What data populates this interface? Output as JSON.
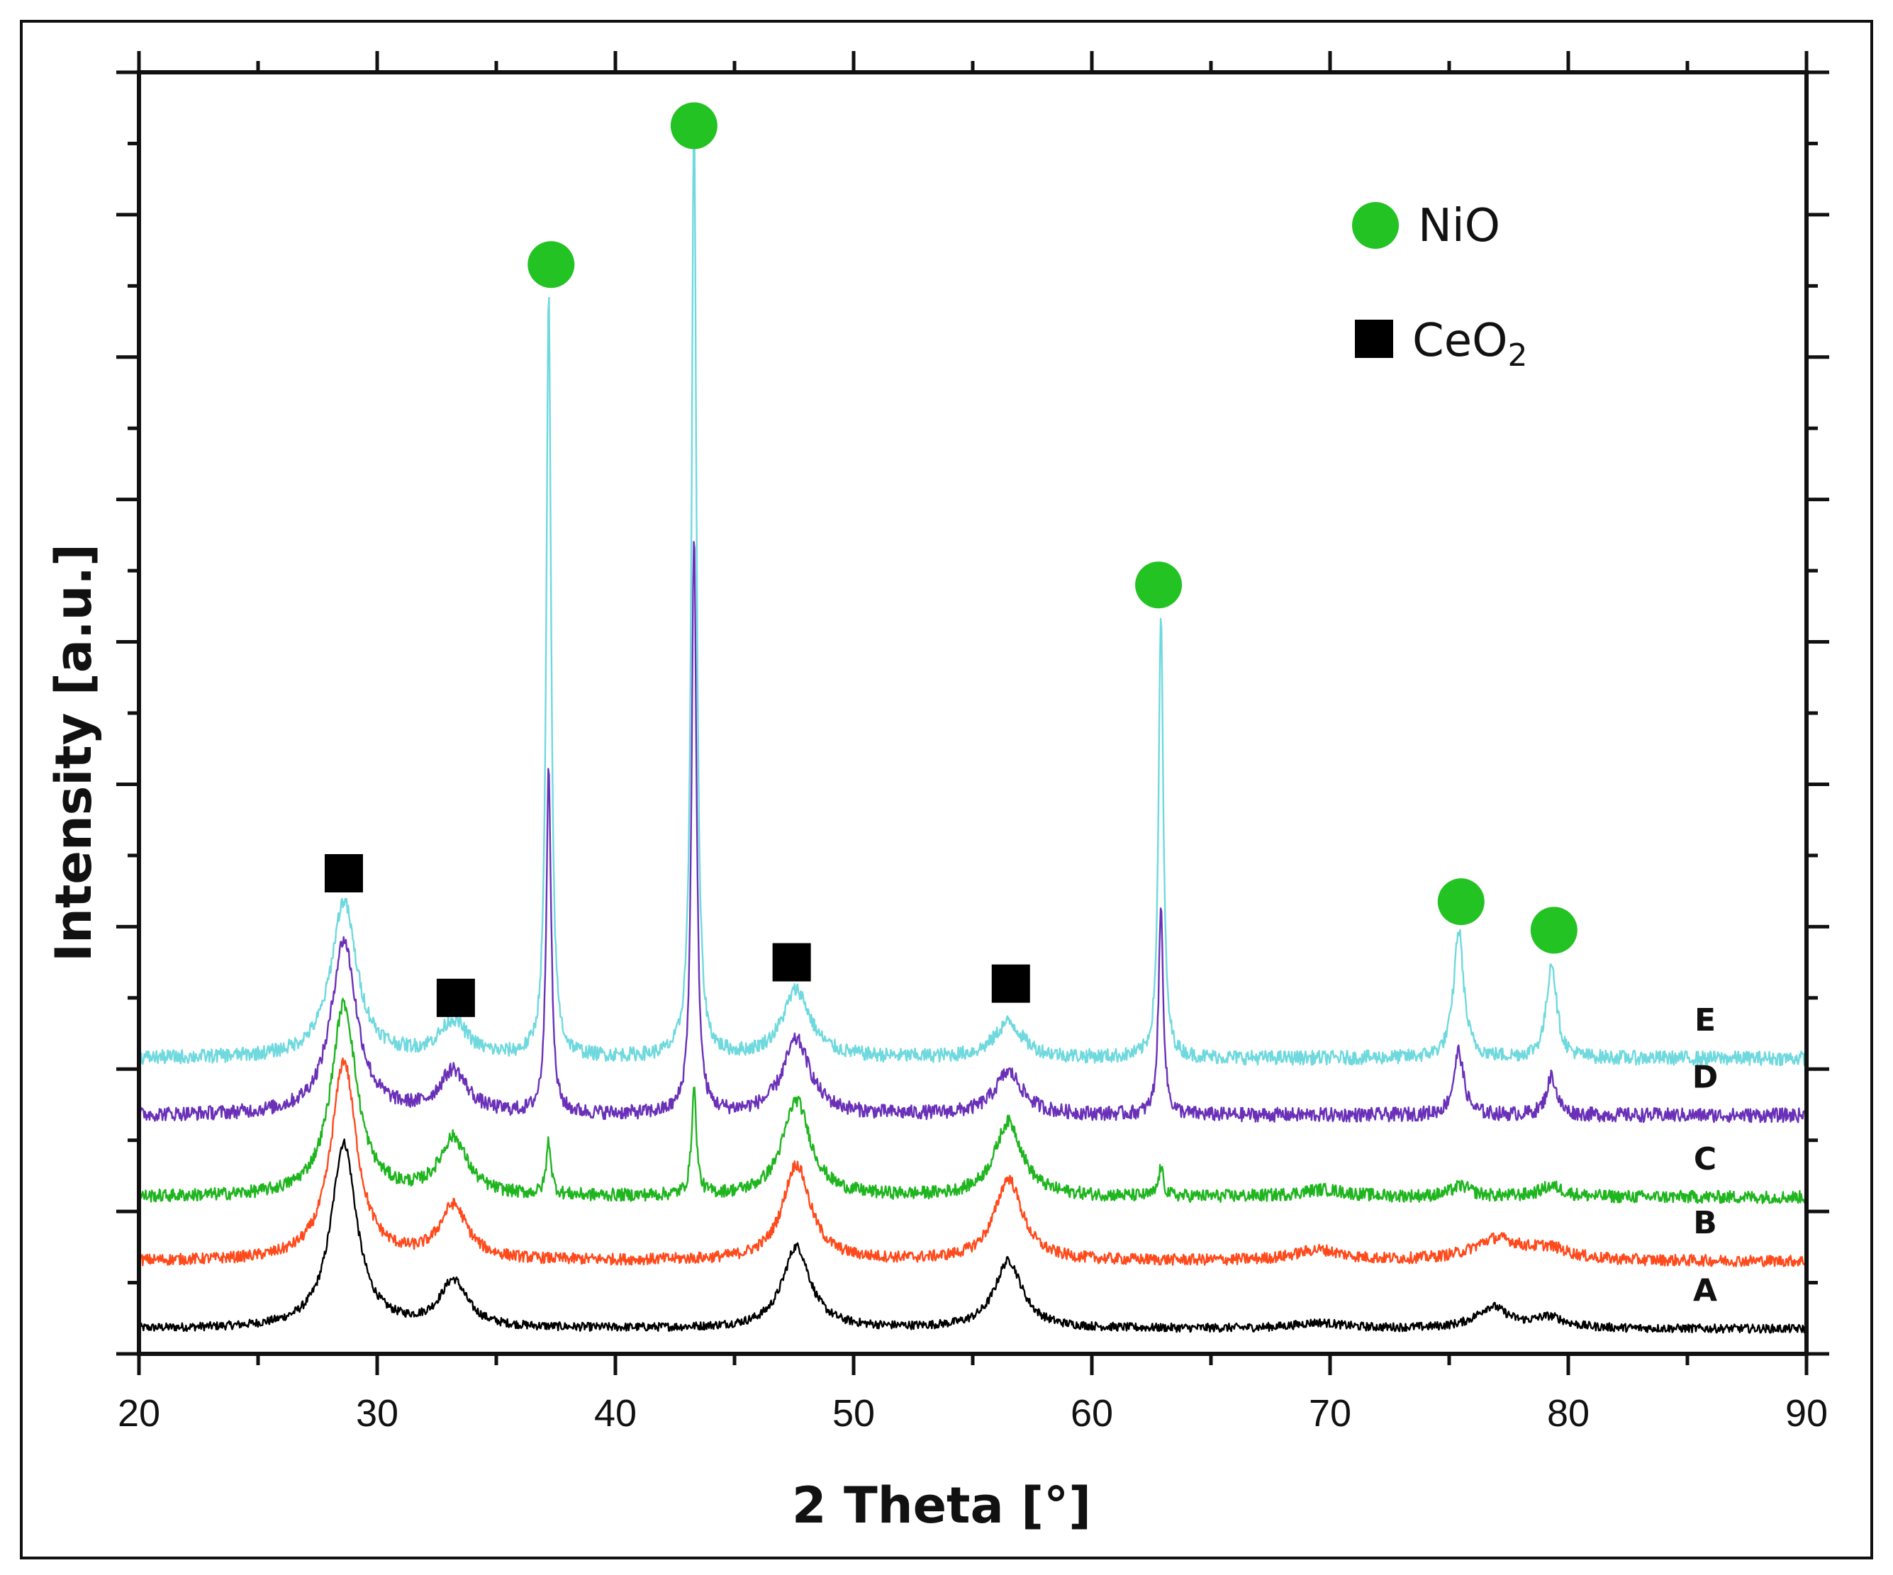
{
  "chart_data": {
    "type": "line",
    "title": "",
    "xlabel": "2 Theta [°]",
    "ylabel": "Intensity [a.u.]",
    "xlim": [
      20,
      90
    ],
    "ylim": [
      0,
      18
    ],
    "x_ticks": [
      20,
      30,
      40,
      50,
      60,
      70,
      80,
      90
    ],
    "x_tick_labels": [
      "20",
      "30",
      "40",
      "50",
      "60",
      "70",
      "80",
      "90"
    ],
    "y_tick_labels_shown": false,
    "grid": false,
    "legend_position": "top-right",
    "legend": [
      {
        "marker": "circle",
        "color": "#22c322",
        "label": "NiO"
      },
      {
        "marker": "square",
        "color": "#000000",
        "label_main": "CeO",
        "label_sub": "2"
      }
    ],
    "series": [
      {
        "name": "A",
        "color": "#000000",
        "baseline": 0.35,
        "noise": 0.06,
        "peaks": [
          [
            28.6,
            2.6,
            0.65
          ],
          [
            33.2,
            0.65,
            0.7
          ],
          [
            47.6,
            1.15,
            0.7
          ],
          [
            56.5,
            0.95,
            0.7
          ],
          [
            69.5,
            0.08,
            1.2
          ],
          [
            76.8,
            0.3,
            0.8
          ],
          [
            79.2,
            0.15,
            0.8
          ]
        ]
      },
      {
        "name": "B",
        "color": "#ff4a1c",
        "baseline": 1.3,
        "noise": 0.08,
        "peaks": [
          [
            28.6,
            2.8,
            0.65
          ],
          [
            33.2,
            0.75,
            0.7
          ],
          [
            47.6,
            1.35,
            0.7
          ],
          [
            56.5,
            1.15,
            0.7
          ],
          [
            69.5,
            0.15,
            1.2
          ],
          [
            77.0,
            0.3,
            1.2
          ],
          [
            79.2,
            0.15,
            1.0
          ]
        ]
      },
      {
        "name": "C",
        "color": "#1fb51f",
        "baseline": 2.2,
        "noise": 0.09,
        "peaks": [
          [
            28.6,
            2.7,
            0.65
          ],
          [
            33.2,
            0.8,
            0.7
          ],
          [
            37.2,
            0.75,
            0.12
          ],
          [
            43.3,
            1.5,
            0.12
          ],
          [
            47.6,
            1.35,
            0.7
          ],
          [
            56.5,
            1.05,
            0.7
          ],
          [
            62.9,
            0.4,
            0.12
          ],
          [
            69.7,
            0.1,
            1.2
          ],
          [
            75.5,
            0.15,
            0.5
          ],
          [
            79.3,
            0.15,
            0.6
          ]
        ]
      },
      {
        "name": "D",
        "color": "#6a31b8",
        "baseline": 3.35,
        "noise": 0.1,
        "peaks": [
          [
            28.6,
            2.45,
            0.65
          ],
          [
            33.2,
            0.6,
            0.7
          ],
          [
            37.2,
            4.9,
            0.12
          ],
          [
            43.3,
            8.15,
            0.12
          ],
          [
            47.6,
            1.05,
            0.7
          ],
          [
            56.5,
            0.6,
            0.7
          ],
          [
            62.9,
            2.9,
            0.12
          ],
          [
            75.4,
            0.9,
            0.25
          ],
          [
            79.3,
            0.55,
            0.25
          ]
        ]
      },
      {
        "name": "E",
        "color": "#6fd9de",
        "baseline": 4.15,
        "noise": 0.1,
        "peaks": [
          [
            28.6,
            2.2,
            0.65
          ],
          [
            33.2,
            0.5,
            0.7
          ],
          [
            37.2,
            10.7,
            0.12
          ],
          [
            43.3,
            13.35,
            0.12
          ],
          [
            47.6,
            0.95,
            0.7
          ],
          [
            56.5,
            0.5,
            0.7
          ],
          [
            62.9,
            6.2,
            0.12
          ],
          [
            75.4,
            1.8,
            0.25
          ],
          [
            79.3,
            1.35,
            0.25
          ]
        ]
      }
    ],
    "markers": [
      {
        "type": "square",
        "x": 28.6,
        "y": 6.75
      },
      {
        "type": "square",
        "x": 33.3,
        "y": 5.0
      },
      {
        "type": "square",
        "x": 47.4,
        "y": 5.5
      },
      {
        "type": "square",
        "x": 56.6,
        "y": 5.2
      },
      {
        "type": "circle",
        "x": 37.3,
        "y": 15.3
      },
      {
        "type": "circle",
        "x": 43.3,
        "y": 17.25
      },
      {
        "type": "circle",
        "x": 62.8,
        "y": 10.8
      },
      {
        "type": "circle",
        "x": 75.5,
        "y": 6.35
      },
      {
        "type": "circle",
        "x": 79.4,
        "y": 5.95
      }
    ]
  }
}
